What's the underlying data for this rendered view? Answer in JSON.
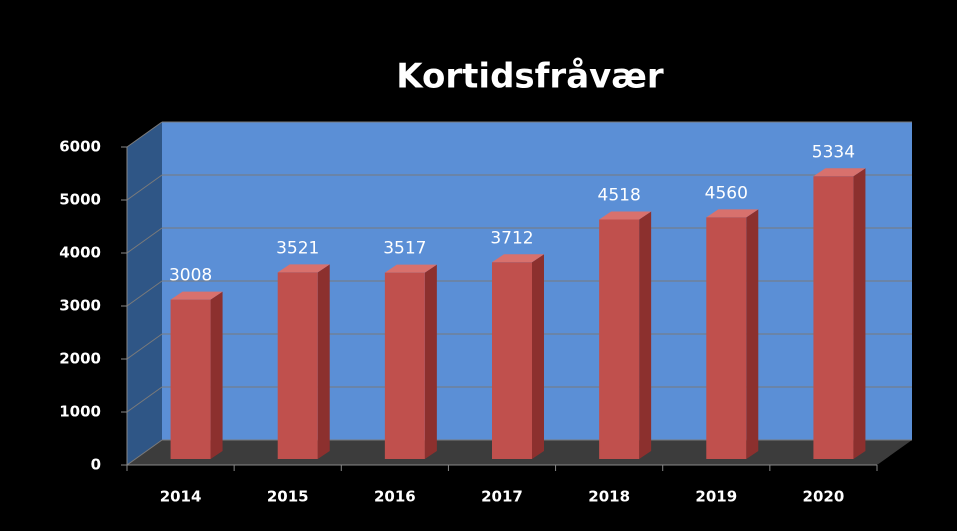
{
  "chart_data": {
    "type": "bar",
    "title": "Kortidsfråvær",
    "categories": [
      "2014",
      "2015",
      "2016",
      "2017",
      "2018",
      "2019",
      "2020"
    ],
    "values": [
      3008,
      3521,
      3517,
      3712,
      4518,
      4560,
      5334
    ],
    "color": "#c0504d",
    "ylim": [
      0,
      6000
    ],
    "yticks": [
      0,
      1000,
      2000,
      3000,
      4000,
      5000,
      6000
    ],
    "grid": true
  }
}
